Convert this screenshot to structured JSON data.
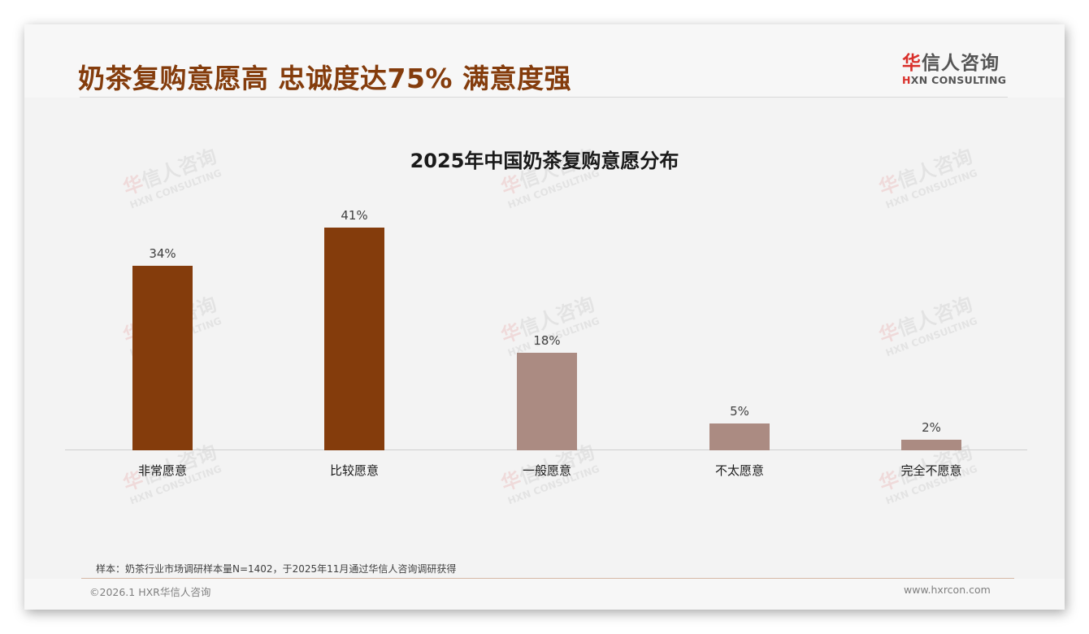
{
  "header": {
    "title": "奶茶复购意愿高 忠诚度达75% 满意度强",
    "logo": {
      "cn_first": "华",
      "cn_rest": "信人咨询",
      "en_first": "H",
      "en_rest": "XN CONSULTING"
    }
  },
  "watermark": {
    "cn_first": "华",
    "cn_rest": "信人咨询",
    "en": "HXN CONSULTING"
  },
  "chart_data": {
    "type": "bar",
    "title": "2025年中国奶茶复购意愿分布",
    "xlabel": "",
    "ylabel": "",
    "categories": [
      "非常愿意",
      "比较愿意",
      "一般愿意",
      "不太愿意",
      "完全不愿意"
    ],
    "values": [
      34,
      41,
      18,
      5,
      2
    ],
    "value_labels": [
      "34%",
      "41%",
      "18%",
      "5%",
      "2%"
    ],
    "unit": "%",
    "ylim": [
      0,
      50
    ],
    "grid": false,
    "legend": null,
    "colors": [
      "#843c0c",
      "#843c0c",
      "#ab8b82",
      "#ab8b82",
      "#ab8b82"
    ]
  },
  "source_note": "样本：奶茶行业市场调研样本量N=1402，于2025年11月通过华信人咨询调研获得",
  "footer": {
    "copyright": "©2026.1 HXR华信人咨询",
    "website": "www.hxrcon.com"
  }
}
